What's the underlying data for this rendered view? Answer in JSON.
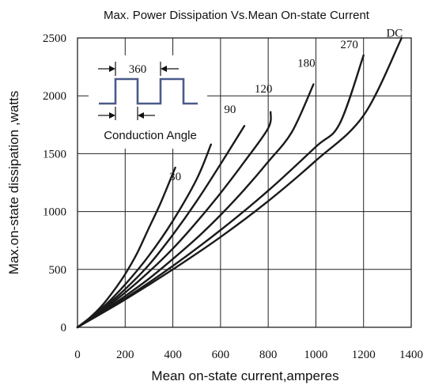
{
  "chart_data": {
    "type": "line",
    "title": "Max. Power Dissipation Vs.Mean On-state Current",
    "xlabel": "Mean on-state current,amperes",
    "ylabel": "Max.on-state dissipation ,watts",
    "xlim": [
      0,
      1400
    ],
    "ylim": [
      0,
      2500
    ],
    "xticks": [
      0,
      200,
      400,
      600,
      800,
      1000,
      1200,
      1400
    ],
    "yticks": [
      0,
      500,
      1000,
      1500,
      2000,
      2500
    ],
    "grid": true,
    "series": [
      {
        "name": "30",
        "x": [
          0,
          50,
          100,
          150,
          200,
          250,
          300,
          350,
          400,
          410
        ],
        "y": [
          0,
          80,
          180,
          310,
          460,
          640,
          860,
          1080,
          1330,
          1380
        ]
      },
      {
        "name": "90",
        "x": [
          0,
          100,
          200,
          300,
          400,
          500,
          560
        ],
        "y": [
          0,
          160,
          370,
          620,
          920,
          1280,
          1580
        ]
      },
      {
        "name": "120",
        "x": [
          0,
          100,
          200,
          300,
          400,
          500,
          600,
          700
        ],
        "y": [
          0,
          150,
          330,
          540,
          800,
          1090,
          1410,
          1740
        ]
      },
      {
        "name": "180",
        "x": [
          0,
          100,
          200,
          300,
          400,
          500,
          600,
          700,
          800,
          810
        ],
        "y": [
          0,
          140,
          300,
          480,
          680,
          910,
          1160,
          1430,
          1720,
          1860
        ]
      },
      {
        "name": "270",
        "x": [
          0,
          100,
          200,
          300,
          400,
          500,
          600,
          700,
          800,
          900,
          990
        ],
        "y": [
          0,
          130,
          270,
          420,
          590,
          770,
          970,
          1190,
          1430,
          1690,
          2100
        ]
      },
      {
        "name": "DC",
        "x": [
          0,
          200,
          400,
          600,
          800,
          1000,
          1100,
          1200
        ],
        "y": [
          0,
          250,
          530,
          840,
          1180,
          1560,
          1760,
          2350
        ]
      },
      {
        "name": "",
        "x": [
          0,
          200,
          400,
          600,
          800,
          1000,
          1200,
          1360
        ],
        "y": [
          0,
          240,
          500,
          780,
          1090,
          1440,
          1830,
          2500
        ]
      }
    ],
    "curve_labels": [
      {
        "text": "30",
        "x": 410,
        "y": 1270
      },
      {
        "text": "90",
        "x": 640,
        "y": 1850
      },
      {
        "text": "120",
        "x": 780,
        "y": 2030
      },
      {
        "text": "180",
        "x": 960,
        "y": 2250
      },
      {
        "text": "270",
        "x": 1140,
        "y": 2410
      },
      {
        "text": "DC",
        "x": 1330,
        "y": 2510
      }
    ],
    "inset": {
      "period_label": "360",
      "caption": "Conduction Angle"
    }
  }
}
